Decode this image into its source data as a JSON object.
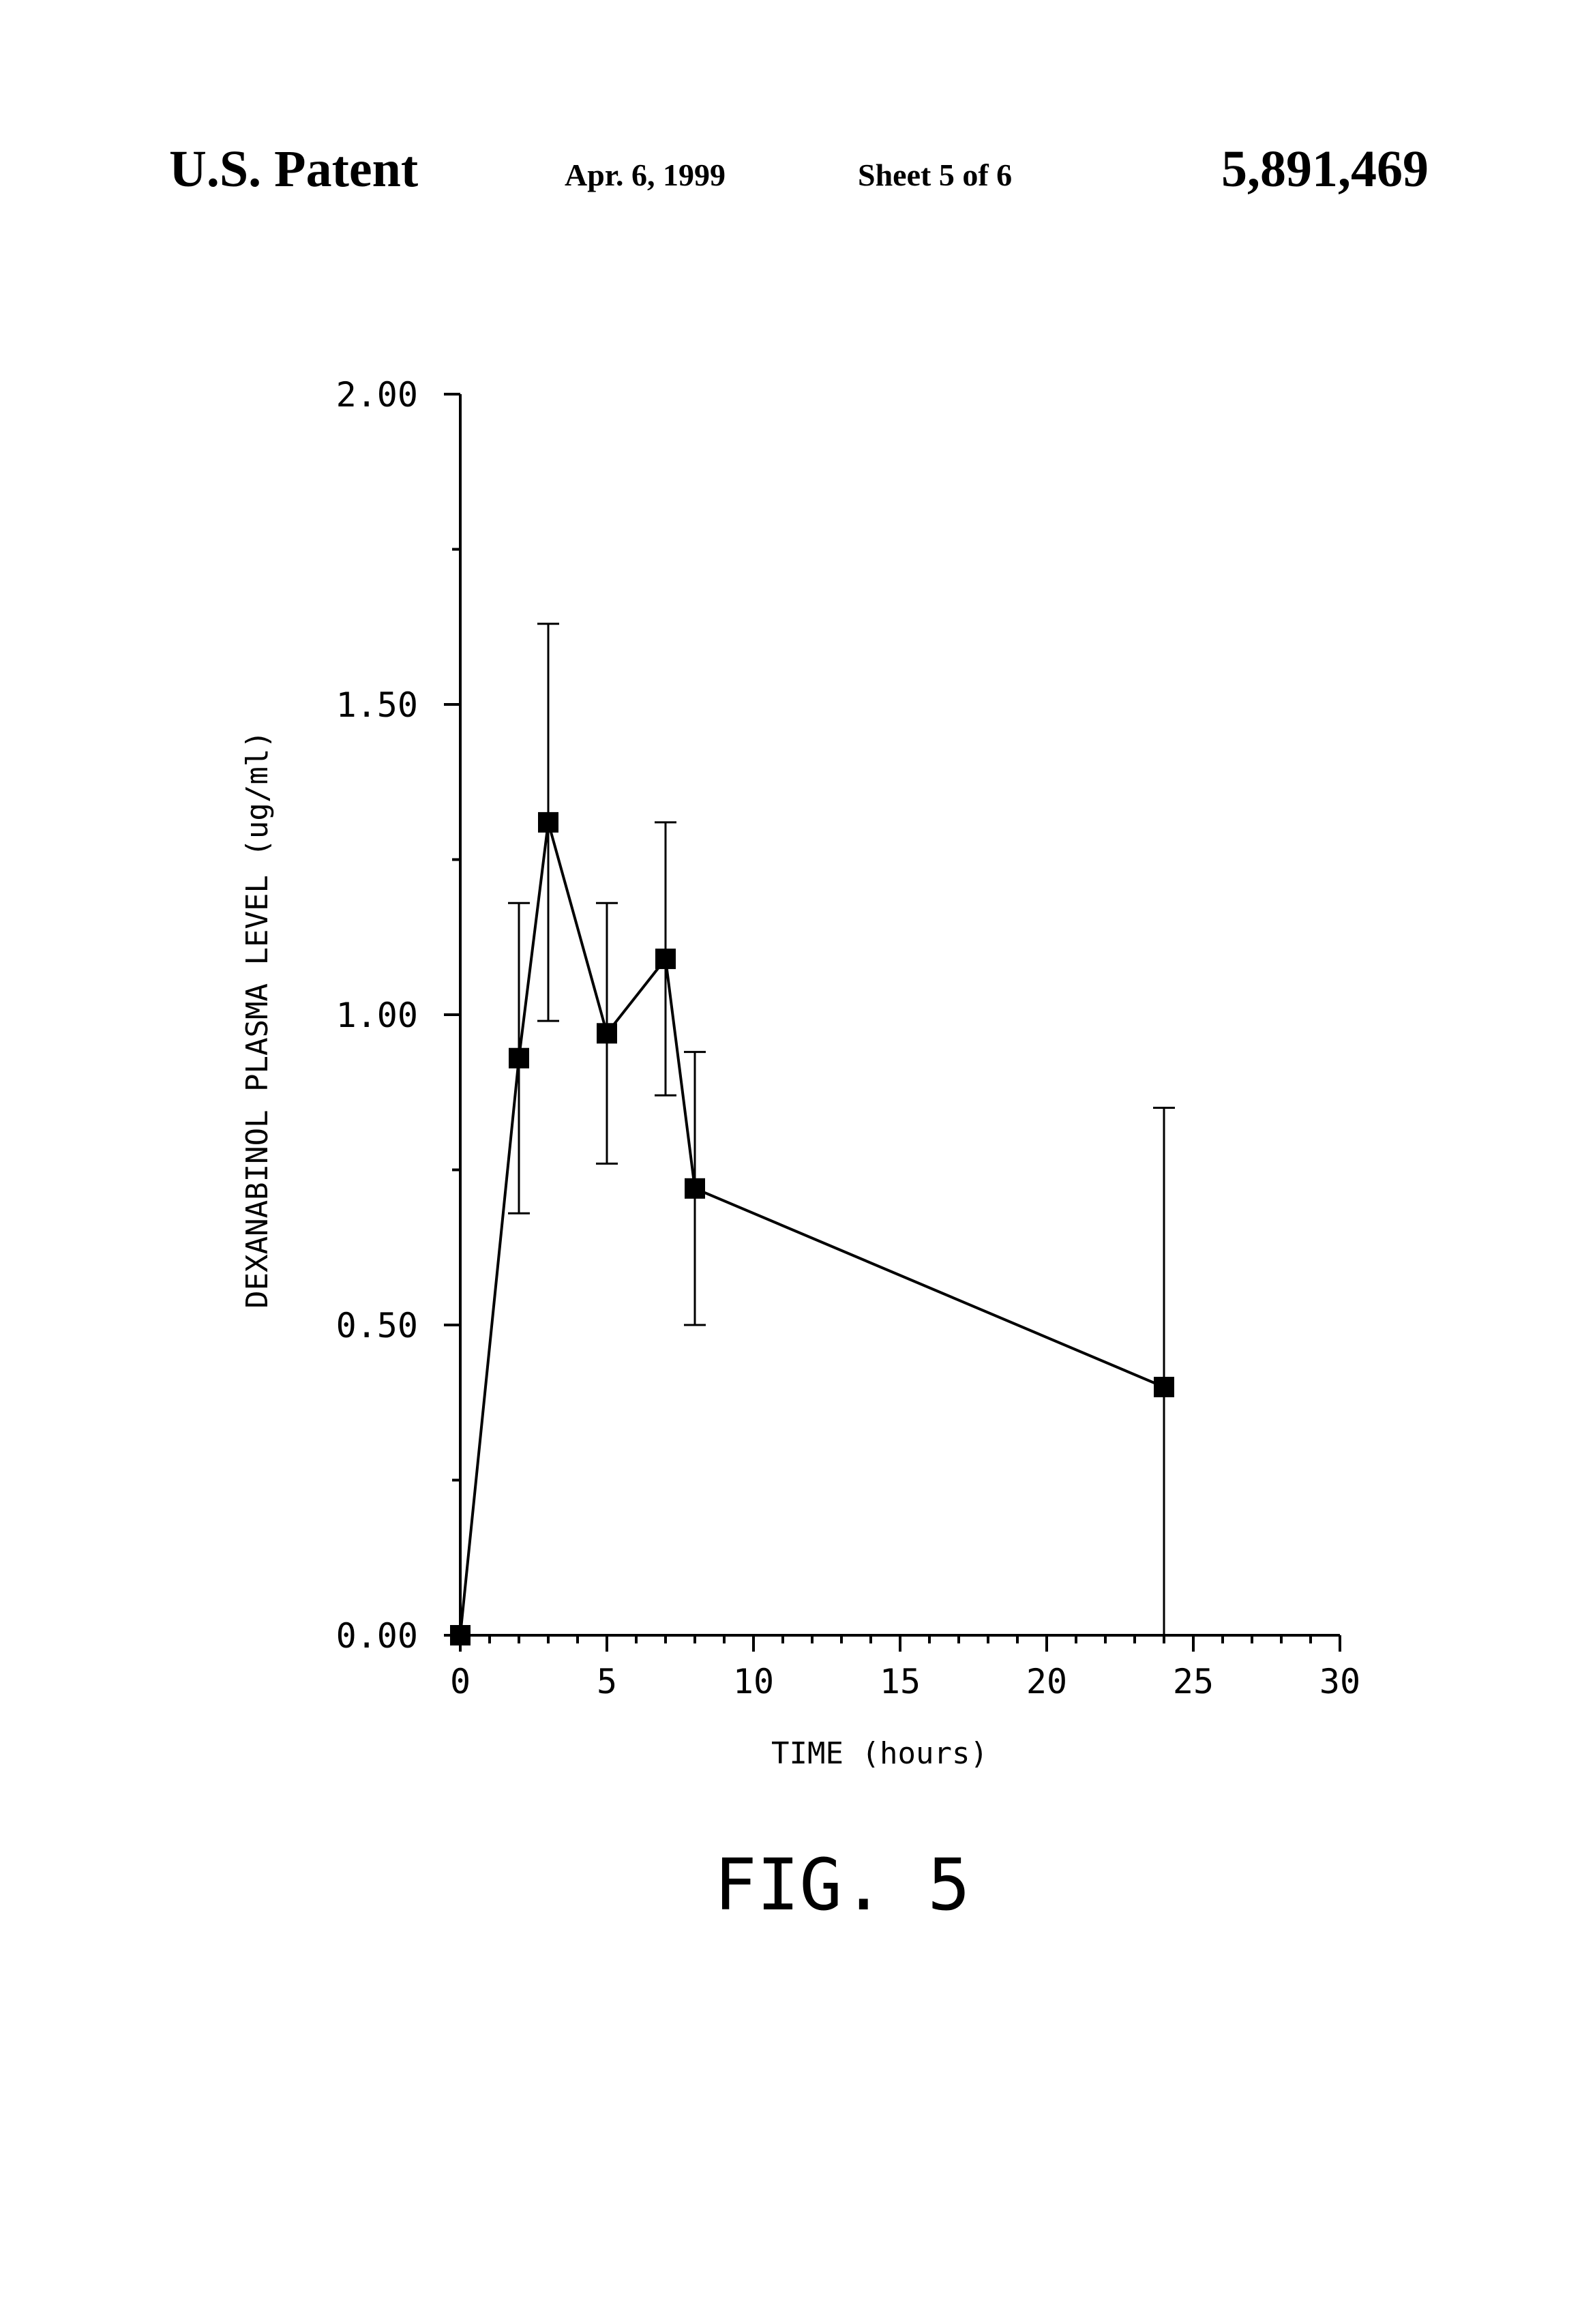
{
  "header": {
    "patent_label": "U.S. Patent",
    "date": "Apr. 6, 1999",
    "sheet": "Sheet 5 of 6",
    "patent_number": "5,891,469"
  },
  "figure_label": "FIG. 5",
  "chart_data": {
    "type": "line",
    "title": "",
    "xlabel": "TIME (hours)",
    "ylabel": "DEXANABINOL PLASMA LEVEL (ug/ml)",
    "xlim": [
      0,
      30
    ],
    "ylim": [
      0,
      2.0
    ],
    "x_ticks": [
      0,
      5,
      10,
      15,
      20,
      25,
      30
    ],
    "x_tick_labels": [
      "0",
      "5",
      "10",
      "15",
      "20",
      "25",
      "30"
    ],
    "y_ticks": [
      0,
      0.5,
      1.0,
      1.5,
      2.0
    ],
    "y_tick_labels": [
      "0.00",
      "0.50",
      "1.00",
      "1.50",
      "2.00"
    ],
    "grid": false,
    "marker": "filled-square",
    "series": [
      {
        "x": [
          0,
          2,
          3,
          5,
          7,
          8,
          24
        ],
        "y": [
          0.0,
          0.93,
          1.31,
          0.97,
          1.09,
          0.72,
          0.4
        ],
        "error_low": [
          0.0,
          0.68,
          0.99,
          0.76,
          0.87,
          0.5,
          0.0
        ],
        "error_high": [
          0.0,
          1.18,
          1.63,
          1.18,
          1.31,
          0.94,
          0.85
        ]
      }
    ],
    "color": "#000000"
  }
}
